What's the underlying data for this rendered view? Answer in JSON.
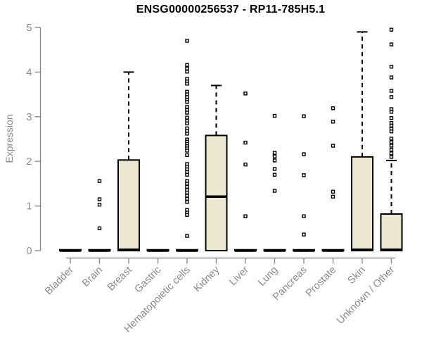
{
  "chart_data": {
    "type": "boxplot",
    "title": "ENSG00000256537 - RP11-785H5.1",
    "ylabel": "Expression",
    "xlabel": "",
    "ylim": [
      0,
      5
    ],
    "yticks": [
      0,
      1,
      2,
      3,
      4,
      5
    ],
    "grid": false,
    "legend": "none",
    "box_fill": "#ECE7CF",
    "box_stroke": "#000000",
    "axis_color": "#8A8A8A",
    "label_color": "#8A8A8A",
    "categories": [
      "Bladder",
      "Brain",
      "Breast",
      "Gastric",
      "Hematopoietic cells",
      "Kidney",
      "Liver",
      "Lung",
      "Pancreas",
      "Prostate",
      "Skin",
      "Unknown / Other"
    ],
    "series": [
      {
        "category": "Bladder",
        "median": 0,
        "q1": 0,
        "q3": 0.02,
        "whisker_low": 0,
        "whisker_high": 0.02,
        "outliers": []
      },
      {
        "category": "Brain",
        "median": 0,
        "q1": 0,
        "q3": 0.02,
        "whisker_low": 0,
        "whisker_high": 0.02,
        "outliers": [
          1.56,
          1.15,
          1.03,
          0.5
        ]
      },
      {
        "category": "Breast",
        "median": 0.02,
        "q1": 0,
        "q3": 2.03,
        "whisker_low": 0,
        "whisker_high": 4.0,
        "outliers": []
      },
      {
        "category": "Gastric",
        "median": 0,
        "q1": 0,
        "q3": 0.02,
        "whisker_low": 0,
        "whisker_high": 0.02,
        "outliers": []
      },
      {
        "category": "Hematopoietic cells",
        "median": 0,
        "q1": 0,
        "q3": 0.02,
        "whisker_low": 0,
        "whisker_high": 0.02,
        "outliers": [
          4.7,
          4.16,
          4.08,
          4.01,
          3.85,
          3.79,
          3.74,
          3.56,
          3.5,
          3.44,
          3.38,
          3.33,
          3.22,
          3.15,
          3.09,
          2.98,
          2.91,
          2.85,
          2.74,
          2.68,
          2.62,
          2.49,
          2.44,
          2.39,
          2.34,
          2.29,
          2.24,
          2.14,
          1.94,
          1.88,
          1.82,
          1.76,
          1.7,
          1.56,
          1.5,
          1.43,
          1.36,
          1.3,
          1.23,
          1.16,
          1.09,
          0.91,
          0.85,
          0.8,
          0.33
        ]
      },
      {
        "category": "Kidney",
        "median": 1.21,
        "q1": 0,
        "q3": 2.58,
        "whisker_low": 0,
        "whisker_high": 3.7,
        "outliers": []
      },
      {
        "category": "Liver",
        "median": 0,
        "q1": 0,
        "q3": 0.02,
        "whisker_low": 0,
        "whisker_high": 0.02,
        "outliers": [
          3.52,
          2.42,
          1.93,
          0.77
        ]
      },
      {
        "category": "Lung",
        "median": 0,
        "q1": 0,
        "q3": 0.02,
        "whisker_low": 0,
        "whisker_high": 0.02,
        "outliers": [
          3.02,
          2.19,
          2.11,
          2.02,
          1.83,
          1.7,
          1.34
        ]
      },
      {
        "category": "Pancreas",
        "median": 0,
        "q1": 0,
        "q3": 0.02,
        "whisker_low": 0,
        "whisker_high": 0.02,
        "outliers": [
          3.01,
          2.16,
          1.69,
          0.77,
          0.36
        ]
      },
      {
        "category": "Prostate",
        "median": 0,
        "q1": 0,
        "q3": 0.02,
        "whisker_low": 0,
        "whisker_high": 0.02,
        "outliers": [
          3.19,
          2.89,
          2.35,
          1.32,
          1.21
        ]
      },
      {
        "category": "Skin",
        "median": 0.02,
        "q1": 0,
        "q3": 2.1,
        "whisker_low": 0,
        "whisker_high": 4.9,
        "outliers": []
      },
      {
        "category": "Unknown / Other",
        "median": 0.02,
        "q1": 0,
        "q3": 0.82,
        "whisker_low": 0,
        "whisker_high": 2.02,
        "outliers": [
          4.95,
          4.62,
          4.12,
          3.88,
          3.58,
          3.44,
          3.17,
          3.11,
          2.97,
          2.86,
          2.8,
          2.73,
          2.67,
          2.51,
          2.43,
          2.35,
          2.26,
          2.18,
          2.1
        ]
      }
    ]
  }
}
